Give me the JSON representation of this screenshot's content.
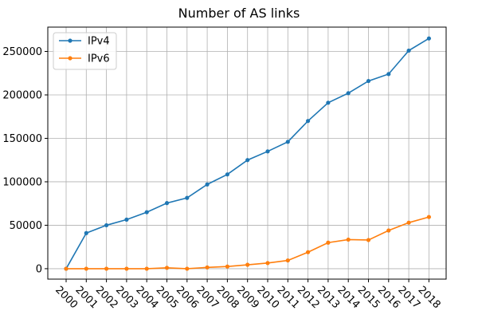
{
  "chart_data": {
    "type": "line",
    "title": "Number of AS links",
    "xlabel": "",
    "ylabel": "",
    "categories": [
      "2000",
      "2001",
      "2002",
      "2003",
      "2004",
      "2005",
      "2006",
      "2007",
      "2008",
      "2009",
      "2010",
      "2011",
      "2012",
      "2013",
      "2014",
      "2015",
      "2016",
      "2017",
      "2018"
    ],
    "series": [
      {
        "name": "IPv4",
        "color": "#1f77b4",
        "marker": "point",
        "values": [
          0,
          41000,
          50000,
          56500,
          65000,
          75500,
          81500,
          97000,
          108500,
          125000,
          135000,
          146000,
          170000,
          191000,
          202000,
          216000,
          224000,
          251000,
          265000
        ]
      },
      {
        "name": "IPv6",
        "color": "#ff7f0e",
        "marker": "point",
        "values": [
          0,
          0,
          0,
          0,
          0,
          1000,
          0,
          1500,
          2500,
          4500,
          6500,
          9500,
          19000,
          30000,
          33500,
          33000,
          44000,
          53000,
          59500
        ]
      }
    ],
    "ylim": [
      -12000,
      278000
    ],
    "yticks": [
      0,
      50000,
      100000,
      150000,
      200000,
      250000
    ],
    "ytick_labels": [
      "0",
      "50000",
      "100000",
      "150000",
      "200000",
      "250000"
    ],
    "grid": true,
    "legend_position": "top-left",
    "xtick_rotation": "-45deg"
  }
}
